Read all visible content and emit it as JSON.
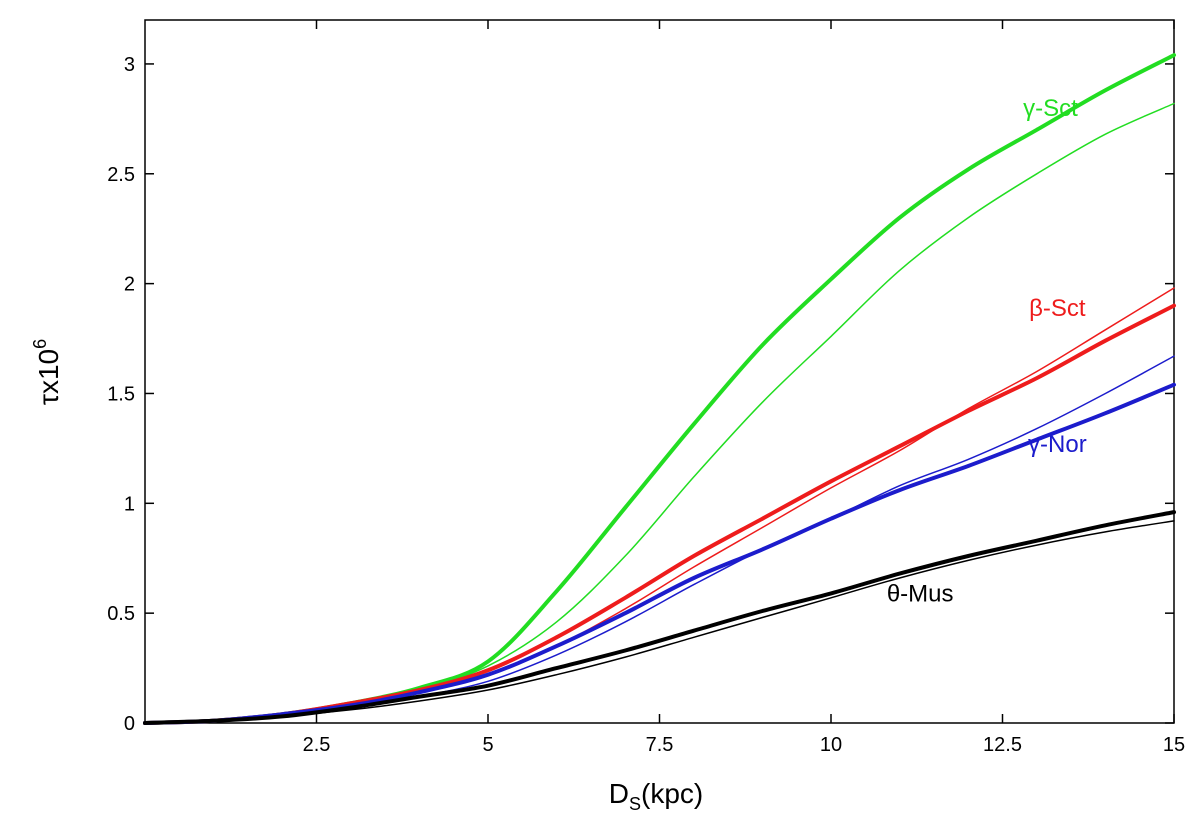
{
  "chart_data": {
    "type": "line",
    "title": "",
    "xlabel": {
      "main": "D",
      "sub": "S",
      "rest": "(kpc)"
    },
    "ylabel": {
      "main": "τx10",
      "sup": "6"
    },
    "xlim": [
      0,
      15
    ],
    "ylim": [
      0,
      3.2
    ],
    "x_ticks": [
      2.5,
      5,
      7.5,
      10,
      12.5,
      15
    ],
    "x_tick_labels": [
      "2.5",
      "5",
      "7.5",
      "10",
      "12.5",
      "15"
    ],
    "y_ticks": [
      0,
      0.5,
      1,
      1.5,
      2,
      2.5,
      3
    ],
    "y_tick_labels": [
      "0",
      "0.5",
      "1",
      "1.5",
      "2",
      "2.5",
      "3"
    ],
    "grid": false,
    "x": [
      0,
      1,
      2,
      3,
      4,
      5,
      6,
      7,
      8,
      9,
      10,
      11,
      12,
      13,
      14,
      15
    ],
    "series": [
      {
        "name": "γ-Sct",
        "variant": "thick",
        "color": "#22dd22",
        "width": 4,
        "values": [
          0,
          0.01,
          0.04,
          0.09,
          0.16,
          0.28,
          0.6,
          0.98,
          1.36,
          1.72,
          2.02,
          2.3,
          2.52,
          2.7,
          2.88,
          3.04
        ]
      },
      {
        "name": "γ-Sct",
        "variant": "thin",
        "color": "#22dd22",
        "width": 1.5,
        "values": [
          0,
          0.01,
          0.04,
          0.09,
          0.15,
          0.26,
          0.46,
          0.76,
          1.12,
          1.46,
          1.76,
          2.06,
          2.3,
          2.5,
          2.68,
          2.82
        ]
      },
      {
        "name": "β-Sct",
        "variant": "thick",
        "color": "#ee1c1c",
        "width": 4,
        "values": [
          0,
          0.01,
          0.04,
          0.09,
          0.15,
          0.24,
          0.39,
          0.57,
          0.76,
          0.93,
          1.1,
          1.26,
          1.42,
          1.57,
          1.74,
          1.9
        ]
      },
      {
        "name": "β-Sct",
        "variant": "thin",
        "color": "#ee1c1c",
        "width": 1.5,
        "values": [
          0,
          0.01,
          0.04,
          0.08,
          0.14,
          0.22,
          0.35,
          0.52,
          0.71,
          0.89,
          1.07,
          1.24,
          1.43,
          1.6,
          1.79,
          1.98
        ]
      },
      {
        "name": "γ-Nor",
        "variant": "thick",
        "color": "#1c1ccc",
        "width": 4,
        "values": [
          0,
          0.01,
          0.04,
          0.08,
          0.14,
          0.22,
          0.35,
          0.5,
          0.66,
          0.79,
          0.93,
          1.06,
          1.17,
          1.29,
          1.41,
          1.54
        ]
      },
      {
        "name": "γ-Nor",
        "variant": "thin",
        "color": "#1c1ccc",
        "width": 1.5,
        "values": [
          0,
          0.01,
          0.03,
          0.07,
          0.12,
          0.19,
          0.31,
          0.46,
          0.63,
          0.79,
          0.93,
          1.08,
          1.2,
          1.34,
          1.5,
          1.67
        ]
      },
      {
        "name": "θ-Mus",
        "variant": "thick",
        "color": "#000000",
        "width": 4,
        "values": [
          0,
          0.01,
          0.03,
          0.07,
          0.12,
          0.17,
          0.25,
          0.33,
          0.42,
          0.51,
          0.59,
          0.68,
          0.76,
          0.83,
          0.9,
          0.96
        ]
      },
      {
        "name": "θ-Mus",
        "variant": "thin",
        "color": "#000000",
        "width": 1.5,
        "values": [
          0,
          0.01,
          0.03,
          0.06,
          0.1,
          0.15,
          0.22,
          0.3,
          0.39,
          0.48,
          0.57,
          0.66,
          0.74,
          0.81,
          0.87,
          0.92
        ]
      }
    ],
    "annotations": [
      {
        "text": "γ-Sct",
        "x": 13.2,
        "y": 2.8,
        "color": "#22dd22"
      },
      {
        "text": "β-Sct",
        "x": 13.3,
        "y": 1.89,
        "color": "#ee1c1c"
      },
      {
        "text": "γ-Nor",
        "x": 13.3,
        "y": 1.27,
        "color": "#1c1ccc"
      },
      {
        "text": "θ-Mus",
        "x": 11.3,
        "y": 0.59,
        "color": "#000000"
      }
    ]
  }
}
